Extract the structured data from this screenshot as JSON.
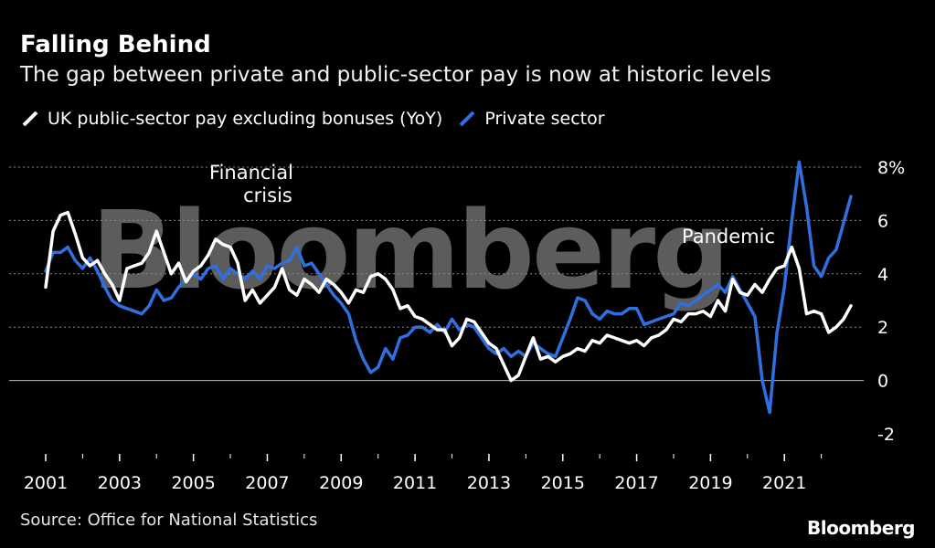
{
  "header": {
    "title": "Falling Behind",
    "subtitle": "The gap between private and public-sector pay is now at historic levels"
  },
  "legend": {
    "public_label": "UK public-sector pay excluding bonuses (YoY)",
    "private_label": "Private sector"
  },
  "annotations": {
    "financial_crisis_line1": "Financial",
    "financial_crisis_line2": "crisis",
    "pandemic": "Pandemic"
  },
  "watermark": "Bloomberg",
  "footer": {
    "source": "Source: Office for National Statistics",
    "logo": "Bloomberg"
  },
  "colors": {
    "public": "#ffffff",
    "private": "#2f6fe0",
    "background": "#000000",
    "grid": "#8a8a8a"
  },
  "chart_data": {
    "type": "line",
    "title": "Falling Behind",
    "subtitle": "The gap between private and public-sector pay is now at historic levels",
    "xlabel": "",
    "ylabel": "",
    "x_ticks": [
      "2001",
      "2003",
      "2005",
      "2007",
      "2009",
      "2011",
      "2013",
      "2015",
      "2017",
      "2019",
      "2021"
    ],
    "y_ticks": [
      "-2",
      "0",
      "2",
      "4",
      "6",
      "8%"
    ],
    "xlim": [
      2001,
      2022.9
    ],
    "ylim": [
      -2.5,
      8.5
    ],
    "grid": "horizontal dotted",
    "series": [
      {
        "name": "UK public-sector pay excluding bonuses (YoY)",
        "color": "#ffffff",
        "points": [
          [
            2001.0,
            3.5
          ],
          [
            2001.2,
            5.6
          ],
          [
            2001.4,
            6.2
          ],
          [
            2001.6,
            6.3
          ],
          [
            2001.8,
            5.5
          ],
          [
            2002.0,
            4.6
          ],
          [
            2002.2,
            4.3
          ],
          [
            2002.4,
            4.5
          ],
          [
            2002.6,
            4.0
          ],
          [
            2002.8,
            3.6
          ],
          [
            2003.0,
            3.0
          ],
          [
            2003.2,
            4.2
          ],
          [
            2003.4,
            4.3
          ],
          [
            2003.6,
            4.4
          ],
          [
            2003.8,
            4.8
          ],
          [
            2004.0,
            5.6
          ],
          [
            2004.2,
            4.8
          ],
          [
            2004.4,
            4.0
          ],
          [
            2004.6,
            4.4
          ],
          [
            2004.8,
            3.7
          ],
          [
            2005.0,
            4.1
          ],
          [
            2005.2,
            4.3
          ],
          [
            2005.4,
            4.7
          ],
          [
            2005.6,
            5.3
          ],
          [
            2005.8,
            5.1
          ],
          [
            2006.0,
            5.0
          ],
          [
            2006.2,
            4.4
          ],
          [
            2006.4,
            3.0
          ],
          [
            2006.6,
            3.4
          ],
          [
            2006.8,
            2.9
          ],
          [
            2007.0,
            3.2
          ],
          [
            2007.2,
            3.5
          ],
          [
            2007.4,
            4.2
          ],
          [
            2007.6,
            3.4
          ],
          [
            2007.8,
            3.2
          ],
          [
            2008.0,
            3.8
          ],
          [
            2008.2,
            3.6
          ],
          [
            2008.4,
            3.3
          ],
          [
            2008.6,
            3.8
          ],
          [
            2008.8,
            3.6
          ],
          [
            2009.0,
            3.3
          ],
          [
            2009.2,
            2.9
          ],
          [
            2009.4,
            3.4
          ],
          [
            2009.6,
            3.3
          ],
          [
            2009.8,
            3.9
          ],
          [
            2010.0,
            4.0
          ],
          [
            2010.2,
            3.8
          ],
          [
            2010.4,
            3.4
          ],
          [
            2010.6,
            2.7
          ],
          [
            2010.8,
            2.8
          ],
          [
            2011.0,
            2.4
          ],
          [
            2011.2,
            2.3
          ],
          [
            2011.4,
            2.1
          ],
          [
            2011.6,
            1.9
          ],
          [
            2011.8,
            1.9
          ],
          [
            2012.0,
            1.3
          ],
          [
            2012.2,
            1.6
          ],
          [
            2012.4,
            2.3
          ],
          [
            2012.6,
            2.2
          ],
          [
            2012.8,
            1.8
          ],
          [
            2013.0,
            1.4
          ],
          [
            2013.2,
            1.2
          ],
          [
            2013.4,
            0.6
          ],
          [
            2013.6,
            0.0
          ],
          [
            2013.8,
            0.2
          ],
          [
            2014.0,
            0.9
          ],
          [
            2014.2,
            1.6
          ],
          [
            2014.4,
            0.8
          ],
          [
            2014.6,
            0.9
          ],
          [
            2014.8,
            0.7
          ],
          [
            2015.0,
            0.9
          ],
          [
            2015.2,
            1.0
          ],
          [
            2015.4,
            1.2
          ],
          [
            2015.6,
            1.1
          ],
          [
            2015.8,
            1.5
          ],
          [
            2016.0,
            1.4
          ],
          [
            2016.2,
            1.7
          ],
          [
            2016.4,
            1.6
          ],
          [
            2016.6,
            1.5
          ],
          [
            2016.8,
            1.4
          ],
          [
            2017.0,
            1.5
          ],
          [
            2017.2,
            1.3
          ],
          [
            2017.4,
            1.6
          ],
          [
            2017.6,
            1.7
          ],
          [
            2017.8,
            1.9
          ],
          [
            2018.0,
            2.3
          ],
          [
            2018.2,
            2.2
          ],
          [
            2018.4,
            2.5
          ],
          [
            2018.6,
            2.5
          ],
          [
            2018.8,
            2.6
          ],
          [
            2019.0,
            2.4
          ],
          [
            2019.2,
            3.0
          ],
          [
            2019.4,
            2.6
          ],
          [
            2019.6,
            3.8
          ],
          [
            2019.8,
            3.3
          ],
          [
            2020.0,
            3.2
          ],
          [
            2020.2,
            3.6
          ],
          [
            2020.4,
            3.3
          ],
          [
            2020.6,
            3.8
          ],
          [
            2020.8,
            4.2
          ],
          [
            2021.0,
            4.3
          ],
          [
            2021.2,
            5.0
          ],
          [
            2021.4,
            4.2
          ],
          [
            2021.6,
            2.5
          ],
          [
            2021.8,
            2.6
          ],
          [
            2022.0,
            2.5
          ],
          [
            2022.2,
            1.8
          ],
          [
            2022.4,
            2.0
          ],
          [
            2022.6,
            2.3
          ],
          [
            2022.8,
            2.8
          ]
        ]
      },
      {
        "name": "Private sector",
        "color": "#2f6fe0",
        "points": [
          [
            2001.0,
            4.1
          ],
          [
            2001.2,
            4.8
          ],
          [
            2001.4,
            4.8
          ],
          [
            2001.6,
            5.0
          ],
          [
            2001.8,
            4.5
          ],
          [
            2002.0,
            4.2
          ],
          [
            2002.2,
            4.6
          ],
          [
            2002.4,
            4.1
          ],
          [
            2002.6,
            3.5
          ],
          [
            2002.8,
            3.0
          ],
          [
            2003.0,
            2.8
          ],
          [
            2003.2,
            2.7
          ],
          [
            2003.4,
            2.6
          ],
          [
            2003.6,
            2.5
          ],
          [
            2003.8,
            2.8
          ],
          [
            2004.0,
            3.4
          ],
          [
            2004.2,
            3.0
          ],
          [
            2004.4,
            3.1
          ],
          [
            2004.6,
            3.5
          ],
          [
            2004.8,
            3.8
          ],
          [
            2005.0,
            4.0
          ],
          [
            2005.2,
            3.8
          ],
          [
            2005.4,
            4.2
          ],
          [
            2005.6,
            4.3
          ],
          [
            2005.8,
            3.8
          ],
          [
            2006.0,
            4.2
          ],
          [
            2006.2,
            4.0
          ],
          [
            2006.4,
            3.8
          ],
          [
            2006.6,
            4.1
          ],
          [
            2006.8,
            3.8
          ],
          [
            2007.0,
            4.3
          ],
          [
            2007.2,
            4.2
          ],
          [
            2007.4,
            4.4
          ],
          [
            2007.6,
            4.5
          ],
          [
            2007.8,
            5.0
          ],
          [
            2008.0,
            4.3
          ],
          [
            2008.2,
            4.4
          ],
          [
            2008.4,
            4.0
          ],
          [
            2008.6,
            3.6
          ],
          [
            2008.8,
            3.2
          ],
          [
            2009.0,
            2.9
          ],
          [
            2009.2,
            2.5
          ],
          [
            2009.4,
            1.5
          ],
          [
            2009.6,
            0.8
          ],
          [
            2009.8,
            0.3
          ],
          [
            2010.0,
            0.5
          ],
          [
            2010.2,
            1.2
          ],
          [
            2010.4,
            0.8
          ],
          [
            2010.6,
            1.6
          ],
          [
            2010.8,
            1.7
          ],
          [
            2011.0,
            2.0
          ],
          [
            2011.2,
            2.0
          ],
          [
            2011.4,
            1.8
          ],
          [
            2011.6,
            2.1
          ],
          [
            2011.8,
            1.8
          ],
          [
            2012.0,
            2.3
          ],
          [
            2012.2,
            1.9
          ],
          [
            2012.4,
            2.1
          ],
          [
            2012.6,
            2.0
          ],
          [
            2012.8,
            1.6
          ],
          [
            2013.0,
            1.2
          ],
          [
            2013.2,
            1.0
          ],
          [
            2013.4,
            1.2
          ],
          [
            2013.6,
            0.9
          ],
          [
            2013.8,
            1.1
          ],
          [
            2014.0,
            0.9
          ],
          [
            2014.2,
            1.4
          ],
          [
            2014.4,
            1.2
          ],
          [
            2014.6,
            1.0
          ],
          [
            2014.8,
            0.9
          ],
          [
            2015.0,
            1.6
          ],
          [
            2015.2,
            2.3
          ],
          [
            2015.4,
            3.1
          ],
          [
            2015.6,
            3.0
          ],
          [
            2015.8,
            2.5
          ],
          [
            2016.0,
            2.3
          ],
          [
            2016.2,
            2.6
          ],
          [
            2016.4,
            2.5
          ],
          [
            2016.6,
            2.5
          ],
          [
            2016.8,
            2.7
          ],
          [
            2017.0,
            2.7
          ],
          [
            2017.2,
            2.1
          ],
          [
            2017.4,
            2.2
          ],
          [
            2017.6,
            2.3
          ],
          [
            2017.8,
            2.4
          ],
          [
            2018.0,
            2.5
          ],
          [
            2018.2,
            2.9
          ],
          [
            2018.4,
            2.8
          ],
          [
            2018.6,
            3.0
          ],
          [
            2018.8,
            3.2
          ],
          [
            2019.0,
            3.4
          ],
          [
            2019.2,
            3.6
          ],
          [
            2019.4,
            3.3
          ],
          [
            2019.6,
            3.9
          ],
          [
            2019.8,
            3.4
          ],
          [
            2020.0,
            2.9
          ],
          [
            2020.2,
            2.4
          ],
          [
            2020.4,
            0.0
          ],
          [
            2020.6,
            -1.2
          ],
          [
            2020.8,
            1.8
          ],
          [
            2021.0,
            3.5
          ],
          [
            2021.2,
            6.0
          ],
          [
            2021.4,
            8.2
          ],
          [
            2021.6,
            6.5
          ],
          [
            2021.8,
            4.3
          ],
          [
            2022.0,
            3.9
          ],
          [
            2022.2,
            4.6
          ],
          [
            2022.4,
            4.9
          ],
          [
            2022.6,
            5.9
          ],
          [
            2022.8,
            6.9
          ]
        ]
      }
    ]
  }
}
